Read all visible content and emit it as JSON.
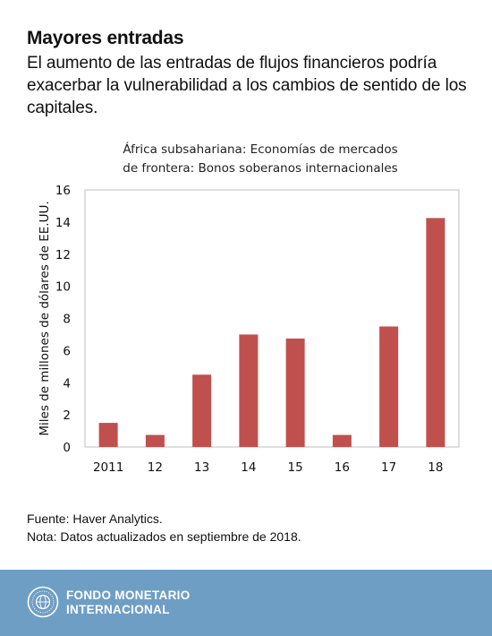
{
  "header": {
    "title": "Mayores entradas",
    "subtitle": "El aumento de las entradas de flujos financieros podría exacerbar la vulnerabilidad a los cambios de sentido de los capitales."
  },
  "chart_data": {
    "type": "bar",
    "title": [
      "África subsahariana: Economías de mercados",
      "de frontera: Bonos soberanos internacionales"
    ],
    "categories": [
      "2011",
      "12",
      "13",
      "14",
      "15",
      "16",
      "17",
      "18"
    ],
    "values": [
      1.5,
      0.75,
      4.5,
      7.0,
      6.75,
      0.75,
      7.5,
      14.25
    ],
    "ylabel": "Miles de millones de dólares de EE.UU.",
    "xlabel": "",
    "ylim": [
      0,
      16
    ],
    "yticks": [
      0,
      2,
      4,
      6,
      8,
      10,
      12,
      14,
      16
    ],
    "grid": false,
    "bar_color": "#c0504d"
  },
  "notes": {
    "source": "Fuente: Haver Analytics.",
    "note": "Nota: Datos actualizados en septiembre de 2018."
  },
  "footer": {
    "org_line1": "FONDO MONETARIO",
    "org_line2": "INTERNACIONAL",
    "logo_icon": "imf-seal-icon",
    "bg_color": "#6f9ec5"
  }
}
